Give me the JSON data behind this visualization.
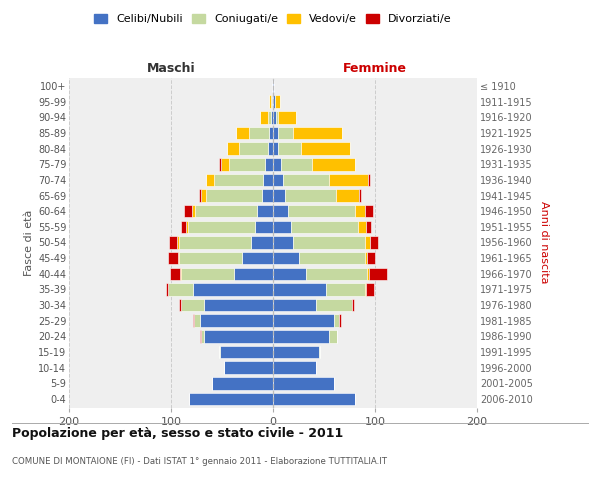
{
  "age_groups": [
    "0-4",
    "5-9",
    "10-14",
    "15-19",
    "20-24",
    "25-29",
    "30-34",
    "35-39",
    "40-44",
    "45-49",
    "50-54",
    "55-59",
    "60-64",
    "65-69",
    "70-74",
    "75-79",
    "80-84",
    "85-89",
    "90-94",
    "95-99",
    "100+"
  ],
  "birth_years": [
    "2006-2010",
    "2001-2005",
    "1996-2000",
    "1991-1995",
    "1986-1990",
    "1981-1985",
    "1976-1980",
    "1971-1975",
    "1966-1970",
    "1961-1965",
    "1956-1960",
    "1951-1955",
    "1946-1950",
    "1941-1945",
    "1936-1940",
    "1931-1935",
    "1926-1930",
    "1921-1925",
    "1916-1920",
    "1911-1915",
    "≤ 1910"
  ],
  "maschi_celibi": [
    82,
    60,
    48,
    52,
    68,
    72,
    68,
    78,
    38,
    30,
    22,
    18,
    16,
    11,
    10,
    8,
    5,
    4,
    2,
    1,
    1
  ],
  "maschi_coniugati": [
    0,
    0,
    0,
    1,
    3,
    5,
    22,
    25,
    52,
    62,
    70,
    65,
    60,
    55,
    48,
    35,
    28,
    20,
    3,
    1,
    0
  ],
  "maschi_vedovi": [
    0,
    0,
    0,
    0,
    0,
    0,
    0,
    0,
    1,
    1,
    2,
    2,
    3,
    5,
    8,
    8,
    12,
    12,
    8,
    2,
    0
  ],
  "maschi_divorziati": [
    0,
    0,
    0,
    0,
    1,
    1,
    2,
    2,
    10,
    10,
    8,
    5,
    8,
    2,
    0,
    2,
    0,
    0,
    0,
    0,
    0
  ],
  "femmine_nubili": [
    80,
    60,
    42,
    45,
    55,
    60,
    42,
    52,
    32,
    25,
    20,
    18,
    15,
    12,
    10,
    8,
    5,
    5,
    3,
    2,
    1
  ],
  "femmine_coniugate": [
    0,
    0,
    0,
    1,
    8,
    5,
    35,
    38,
    60,
    65,
    70,
    65,
    65,
    50,
    45,
    30,
    22,
    15,
    2,
    0,
    0
  ],
  "femmine_vedove": [
    0,
    0,
    0,
    0,
    0,
    0,
    0,
    1,
    2,
    2,
    5,
    8,
    10,
    22,
    38,
    42,
    48,
    48,
    18,
    5,
    0
  ],
  "femmine_divorziate": [
    0,
    0,
    0,
    0,
    0,
    2,
    2,
    8,
    18,
    8,
    8,
    5,
    8,
    2,
    2,
    0,
    0,
    0,
    0,
    0,
    0
  ],
  "colors": {
    "celibi": "#4472c4",
    "coniugati": "#c5d9a0",
    "vedovi": "#ffc000",
    "divorziati": "#cc0000"
  },
  "legend_labels": [
    "Celibi/Nubili",
    "Coniugati/e",
    "Vedovi/e",
    "Divorziati/e"
  ],
  "label_maschi": "Maschi",
  "label_femmine": "Femmine",
  "ylabel_left": "Fasce di età",
  "ylabel_right": "Anni di nascita",
  "title": "Popolazione per età, sesso e stato civile - 2011",
  "subtitle": "COMUNE DI MONTAIONE (FI) - Dati ISTAT 1° gennaio 2011 - Elaborazione TUTTITALIA.IT",
  "xlim": 200,
  "bg_color": "#ffffff",
  "plot_bg": "#efefef",
  "grid_color": "#cccccc"
}
